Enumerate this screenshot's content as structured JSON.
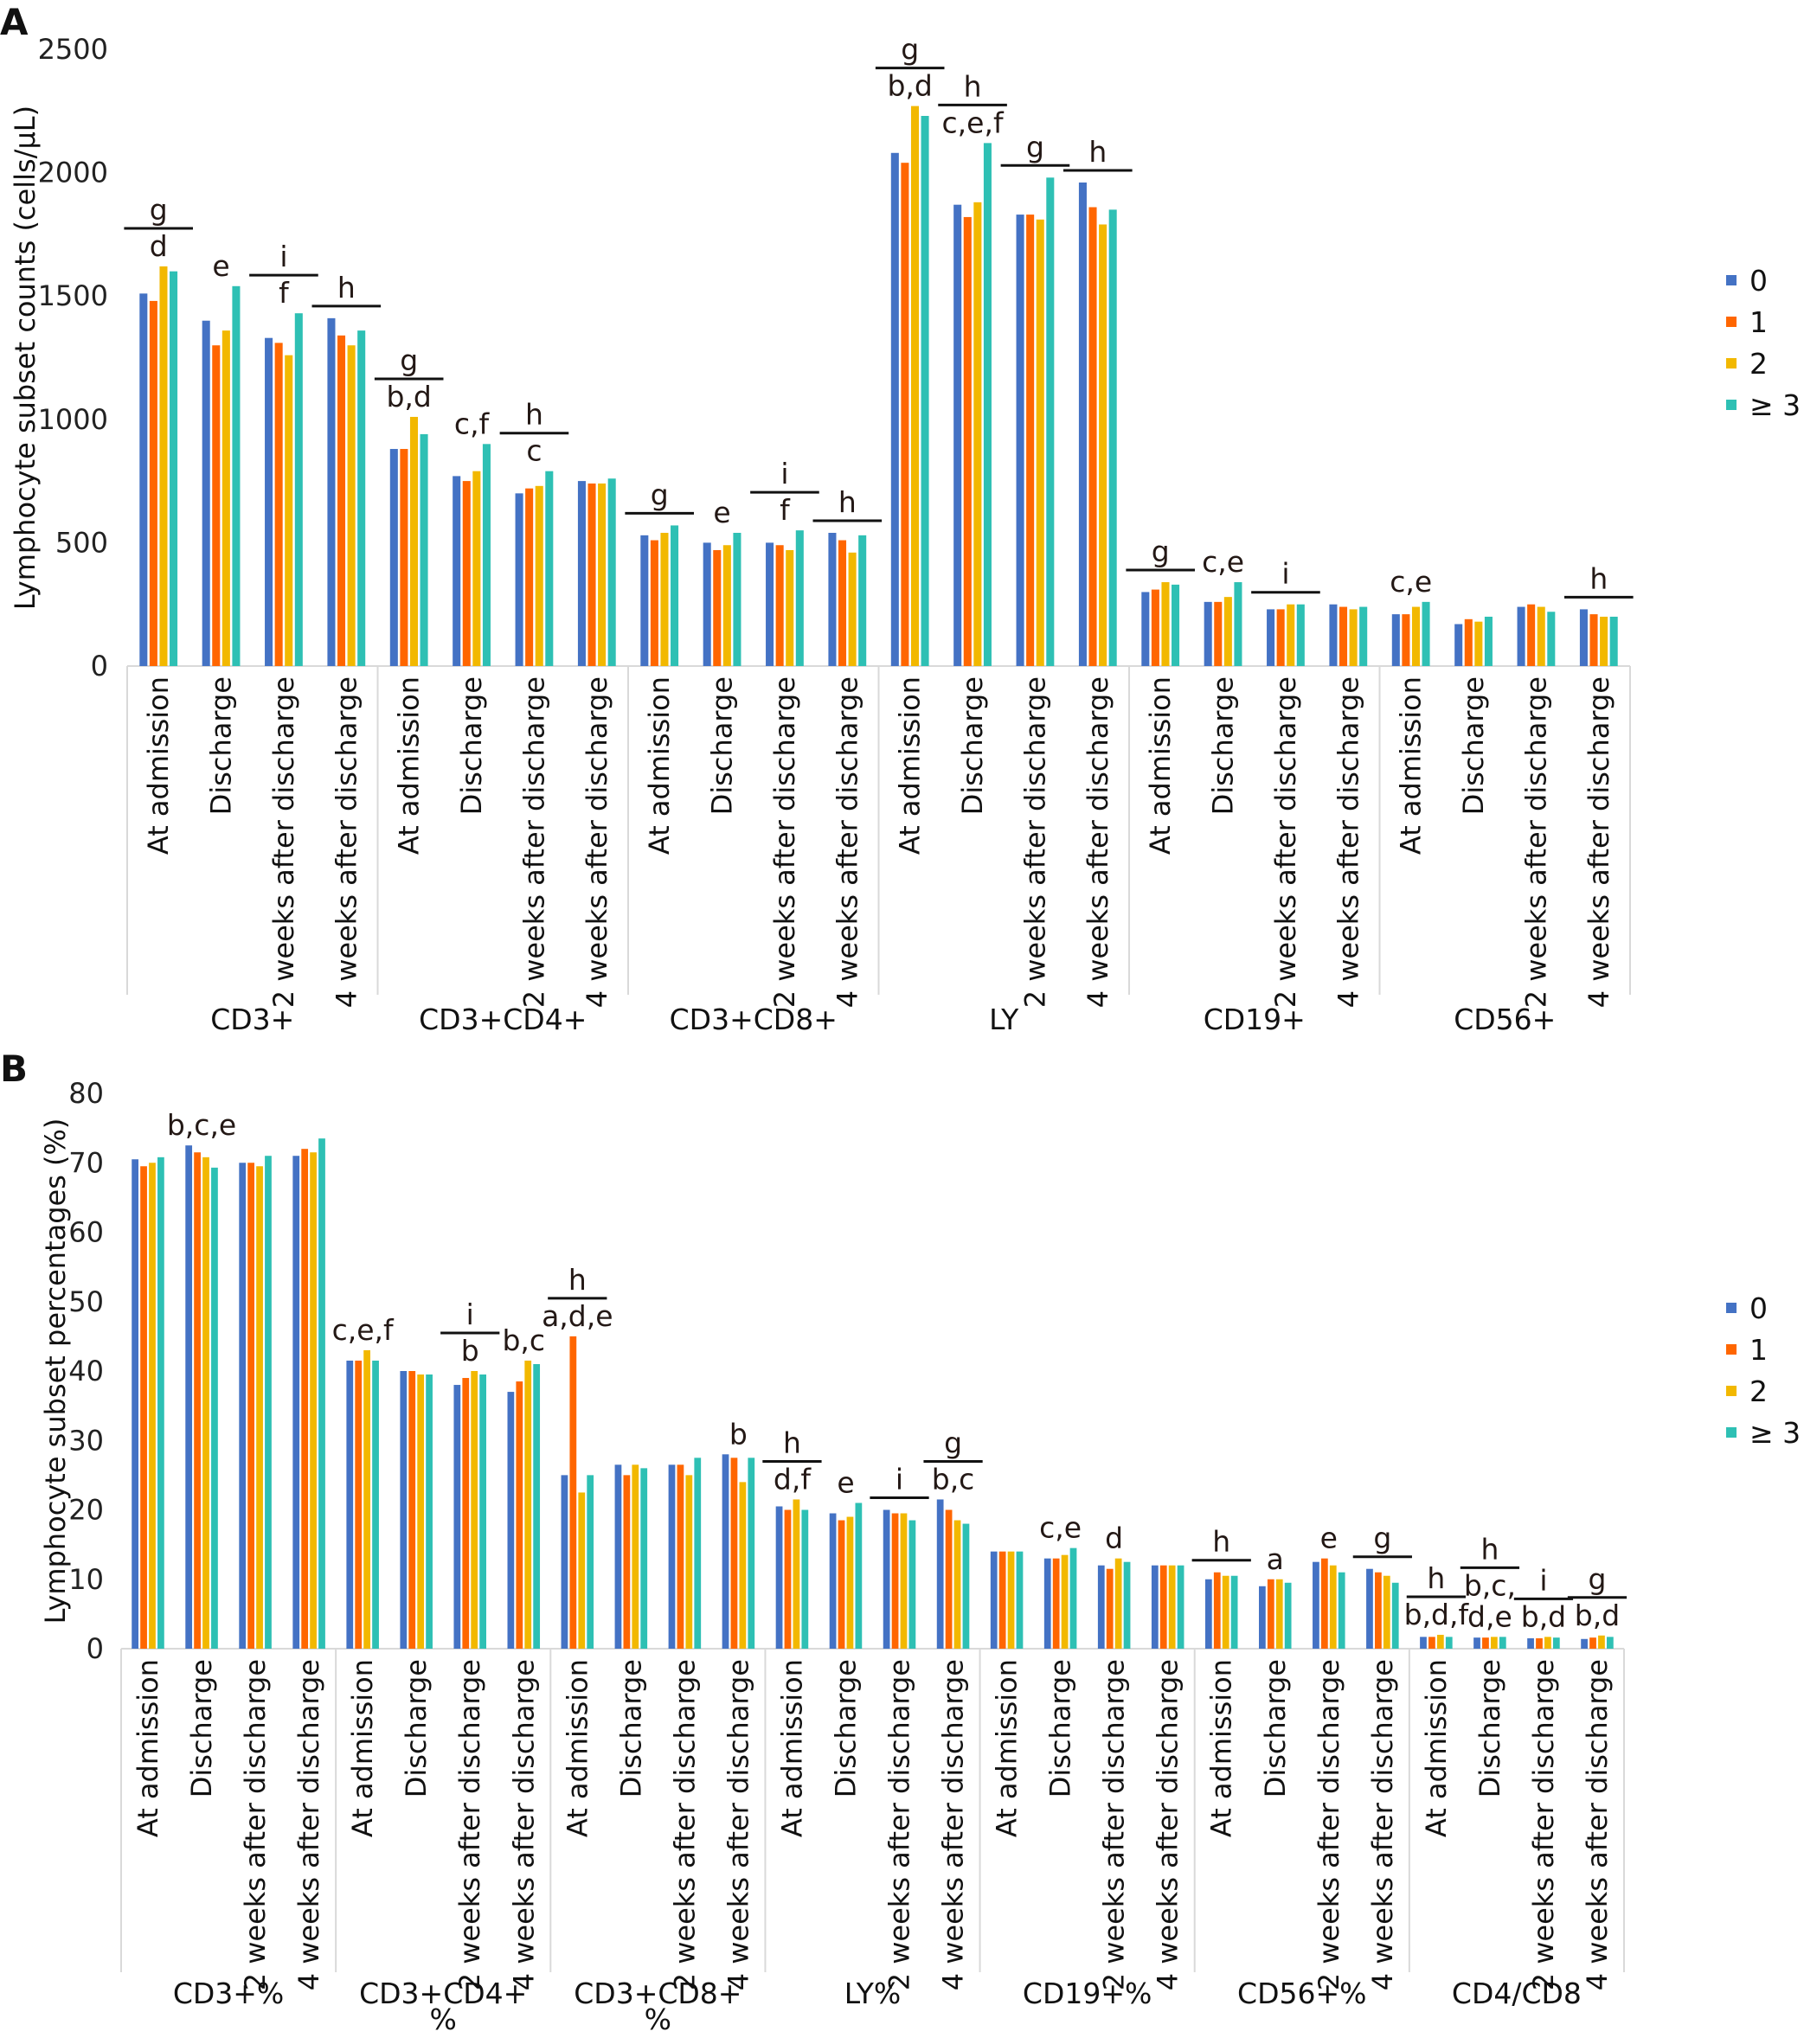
{
  "colors": {
    "0": "#4472C4",
    "1": "#FF6600",
    "2": "#F2B800",
    "3": "#2EC0B4"
  },
  "chart_data": [
    {
      "panel": "A",
      "type": "bar",
      "ylabel": "Lymphocyte subset counts (cells/μL)",
      "ylim": [
        0,
        2500
      ],
      "yticks": [
        0,
        500,
        1000,
        1500,
        2000,
        2500
      ],
      "grid": false,
      "legend_position": "right",
      "groups": [
        [
          "CD3+"
        ],
        [
          "CD3+CD4+"
        ],
        [
          "CD3+CD8+"
        ],
        [
          "LY"
        ],
        [
          "CD19+"
        ],
        [
          "CD56+"
        ]
      ],
      "timepoints": [
        "At admission",
        "Discharge",
        "2 weeks after discharge",
        "4 weeks after discharge"
      ],
      "series": [
        {
          "name": "0",
          "values": [
            1510,
            1400,
            1330,
            1410,
            880,
            770,
            700,
            750,
            530,
            500,
            500,
            540,
            2080,
            1870,
            1830,
            1960,
            300,
            260,
            230,
            250,
            210,
            170,
            240,
            230
          ]
        },
        {
          "name": "1",
          "values": [
            1480,
            1300,
            1310,
            1340,
            880,
            750,
            720,
            740,
            510,
            470,
            490,
            510,
            2040,
            1820,
            1830,
            1860,
            310,
            260,
            230,
            240,
            210,
            190,
            250,
            210
          ]
        },
        {
          "name": "2",
          "values": [
            1620,
            1360,
            1260,
            1300,
            1010,
            790,
            730,
            740,
            540,
            490,
            470,
            460,
            2270,
            1880,
            1810,
            1790,
            340,
            280,
            250,
            230,
            240,
            180,
            240,
            200
          ]
        },
        {
          "name": "≥ 3",
          "values": [
            1600,
            1540,
            1430,
            1360,
            940,
            900,
            790,
            760,
            570,
            540,
            550,
            530,
            2230,
            2120,
            1980,
            1850,
            330,
            340,
            250,
            240,
            260,
            200,
            220,
            200
          ]
        }
      ],
      "annotations": [
        {
          "index": 0,
          "top": "g",
          "bottom": [
            "d"
          ]
        },
        {
          "index": 1,
          "bottom": [
            "e"
          ]
        },
        {
          "index": 2,
          "top": "i",
          "bottom": [
            "f"
          ]
        },
        {
          "index": 3,
          "top": "h"
        },
        {
          "index": 4,
          "top": "g",
          "bottom": [
            "b,d"
          ]
        },
        {
          "index": 5,
          "bottom": [
            "c,f"
          ]
        },
        {
          "index": 6,
          "top": "h",
          "bottom": [
            "c"
          ]
        },
        {
          "index": 8,
          "top": "g"
        },
        {
          "index": 9,
          "bottom": [
            "e"
          ]
        },
        {
          "index": 10,
          "top": "i",
          "bottom": [
            "f"
          ]
        },
        {
          "index": 11,
          "top": "h"
        },
        {
          "index": 12,
          "top": "g",
          "bottom": [
            "b,d"
          ]
        },
        {
          "index": 13,
          "top": "h",
          "bottom": [
            "c,e,f"
          ]
        },
        {
          "index": 14,
          "top": "g"
        },
        {
          "index": 15,
          "top": "h"
        },
        {
          "index": 16,
          "top": "g"
        },
        {
          "index": 17,
          "bottom": [
            "c,e"
          ]
        },
        {
          "index": 18,
          "top": "i"
        },
        {
          "index": 20,
          "bottom": [
            "c,e"
          ]
        },
        {
          "index": 23,
          "top": "h"
        }
      ]
    },
    {
      "panel": "B",
      "type": "bar",
      "ylabel": "Lymphocyte subset percentages (%)",
      "ylim": [
        0,
        80
      ],
      "yticks": [
        0,
        10,
        20,
        30,
        40,
        50,
        60,
        70,
        80
      ],
      "grid": false,
      "legend_position": "right",
      "groups": [
        [
          "CD3+%"
        ],
        [
          "CD3+CD4+",
          "%"
        ],
        [
          "CD3+CD8+",
          "%"
        ],
        [
          "LY%"
        ],
        [
          "CD19+%"
        ],
        [
          "CD56+%"
        ],
        [
          "CD4/CD8"
        ]
      ],
      "timepoints": [
        "At admission",
        "Discharge",
        "2 weeks after discharge",
        "4 weeks after discharge"
      ],
      "series": [
        {
          "name": "0",
          "values": [
            70.5,
            72.5,
            70,
            71,
            41.5,
            40,
            38,
            37,
            25,
            26.5,
            26.5,
            28,
            20.5,
            19.5,
            20,
            21.5,
            14,
            13,
            12,
            12,
            10,
            9,
            12.5,
            11.5,
            1.7,
            1.6,
            1.5,
            1.4
          ]
        },
        {
          "name": "1",
          "values": [
            69.5,
            71.5,
            70,
            72,
            41.5,
            40,
            39,
            38.5,
            45,
            25,
            26.5,
            27.5,
            20,
            18.5,
            19.5,
            20,
            14,
            13,
            11.5,
            12,
            11,
            10,
            13,
            11,
            1.7,
            1.6,
            1.5,
            1.6
          ]
        },
        {
          "name": "2",
          "values": [
            70,
            70.8,
            69.5,
            71.5,
            43,
            39.5,
            40,
            41.5,
            22.5,
            26.5,
            25,
            24,
            21.5,
            19,
            19.5,
            18.5,
            14,
            13.5,
            13,
            12,
            10.5,
            10,
            12,
            10.5,
            2.0,
            1.7,
            1.7,
            1.9
          ]
        },
        {
          "name": "≥ 3",
          "values": [
            70.8,
            69.3,
            71,
            73.5,
            41.5,
            39.5,
            39.5,
            41,
            25,
            26,
            27.5,
            27.5,
            20,
            21,
            18.5,
            18,
            14,
            14.5,
            12.5,
            12,
            10.5,
            9.5,
            11,
            9.5,
            1.7,
            1.7,
            1.6,
            1.7
          ]
        }
      ],
      "annotations": [
        {
          "index": 1,
          "bottom": [
            "b,c,e"
          ]
        },
        {
          "index": 4,
          "bottom": [
            "c,e,f"
          ]
        },
        {
          "index": 6,
          "top": "i",
          "bottom": [
            "b"
          ]
        },
        {
          "index": 7,
          "bottom": [
            "b,c"
          ]
        },
        {
          "index": 8,
          "top": "h",
          "bottom": [
            "a,d,e"
          ]
        },
        {
          "index": 11,
          "bottom": [
            "b"
          ]
        },
        {
          "index": 12,
          "top": "h",
          "bottom": [
            "d,f"
          ]
        },
        {
          "index": 13,
          "bottom": [
            "e"
          ]
        },
        {
          "index": 14,
          "top": "i"
        },
        {
          "index": 15,
          "top": "g",
          "bottom": [
            "b,c"
          ]
        },
        {
          "index": 17,
          "bottom": [
            "c,e"
          ]
        },
        {
          "index": 18,
          "bottom": [
            "d"
          ]
        },
        {
          "index": 20,
          "top": "h"
        },
        {
          "index": 21,
          "bottom": [
            "a"
          ]
        },
        {
          "index": 22,
          "bottom": [
            "e"
          ]
        },
        {
          "index": 23,
          "top": "g"
        },
        {
          "index": 24,
          "top": "h",
          "bottom": [
            "b,d,f"
          ]
        },
        {
          "index": 25,
          "top": "h",
          "bottom": [
            "b,c,",
            "d,e"
          ]
        },
        {
          "index": 26,
          "top": "i",
          "bottom": [
            "b,d"
          ]
        },
        {
          "index": 27,
          "top": "g",
          "bottom": [
            "b,d"
          ]
        }
      ]
    }
  ]
}
